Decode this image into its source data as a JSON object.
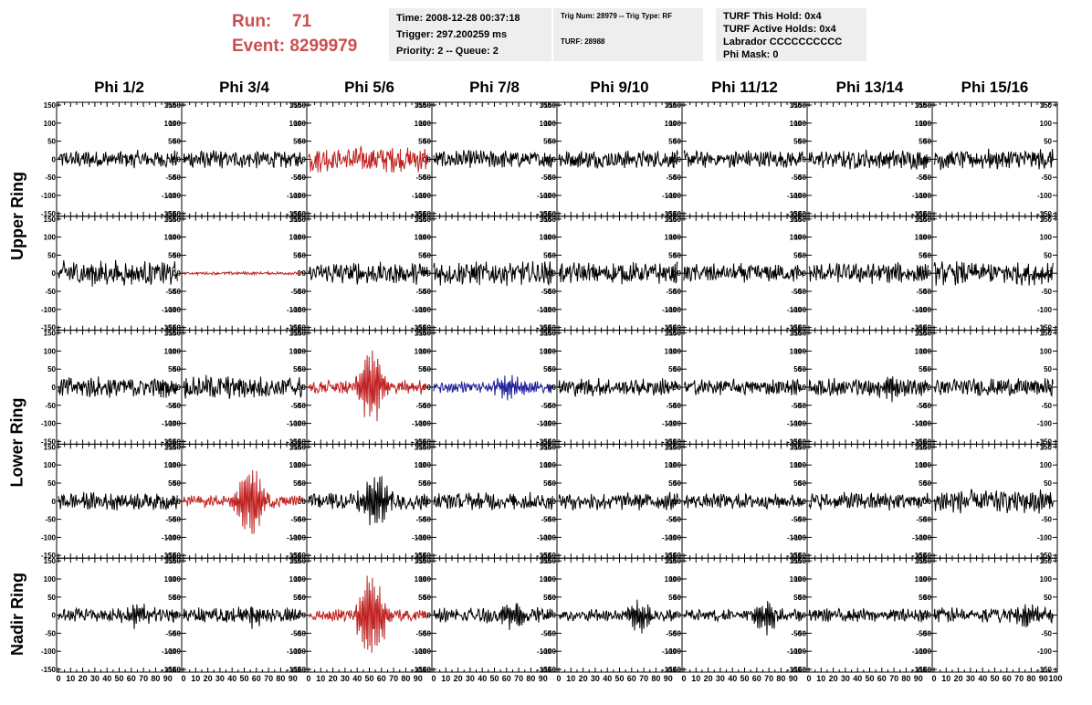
{
  "run": {
    "run_label": "Run:",
    "run_value": "71",
    "event_label": "Event:",
    "event_value": "8299979"
  },
  "info": {
    "time": "Time: 2008-12-28 00:37:18",
    "trigger": "Trigger: 297.200259 ms",
    "priority": "Priority: 2 -- Queue: 2",
    "trig_num": "Trig Num: 28979 -- Trig Type: RF",
    "turf": "TURF: 28988",
    "turf_hold": "TURF This Hold: 0x4",
    "turf_active": "TURF Active Holds: 0x4",
    "labrador": "Labrador CCCCCCCCCC",
    "phi_mask": "Phi Mask: 0"
  },
  "colors": {
    "header_red": "#cc4e4e",
    "trace_black": "#000000",
    "trace_red": "#c02020",
    "trace_blue": "#1a1a9a",
    "box_bg": "#eeeeee"
  },
  "chart_data": {
    "type": "line",
    "columns": [
      "Phi 1/2",
      "Phi 3/4",
      "Phi 5/6",
      "Phi 7/8",
      "Phi 9/10",
      "Phi 11/12",
      "Phi 13/14",
      "Phi 15/16"
    ],
    "row_groups": [
      {
        "label": "Upper Ring",
        "rows": [
          0,
          1
        ]
      },
      {
        "label": "Lower Ring",
        "rows": [
          2,
          3
        ]
      },
      {
        "label": "Nadir Ring",
        "rows": [
          4
        ]
      }
    ],
    "xlim": [
      0,
      100
    ],
    "x_tick_labels": [
      "0",
      "10",
      "20",
      "30",
      "40",
      "50",
      "60",
      "70",
      "80",
      "90",
      "100"
    ],
    "ylim": [
      -150,
      150
    ],
    "y_tick_labels": [
      "150",
      "100",
      "50",
      "0",
      "-50",
      "-100",
      "-150"
    ],
    "x_signal_range": [
      0,
      98
    ],
    "grid": false,
    "panels": [
      [
        {
          "amp": 12,
          "burst": 0,
          "center": 60,
          "color": "black"
        },
        {
          "amp": 12,
          "burst": 0,
          "center": 60,
          "color": "black"
        },
        {
          "amp": 18,
          "burst": 0,
          "center": 60,
          "color": "red"
        },
        {
          "amp": 12,
          "burst": 0,
          "center": 60,
          "color": "black"
        },
        {
          "amp": 12,
          "burst": 0,
          "center": 60,
          "color": "black"
        },
        {
          "amp": 12,
          "burst": 0,
          "center": 60,
          "color": "black"
        },
        {
          "amp": 13,
          "burst": 0,
          "center": 60,
          "color": "black"
        },
        {
          "amp": 14,
          "burst": 0,
          "center": 60,
          "color": "black"
        }
      ],
      [
        {
          "amp": 17,
          "burst": 0,
          "center": 60,
          "color": "black"
        },
        {
          "amp": 2,
          "burst": 0,
          "center": 60,
          "color": "red"
        },
        {
          "amp": 15,
          "burst": 0,
          "center": 60,
          "color": "black"
        },
        {
          "amp": 16,
          "burst": 0,
          "center": 60,
          "color": "black"
        },
        {
          "amp": 15,
          "burst": 0,
          "center": 60,
          "color": "black"
        },
        {
          "amp": 13,
          "burst": 0,
          "center": 60,
          "color": "black"
        },
        {
          "amp": 14,
          "burst": 0,
          "center": 60,
          "color": "black"
        },
        {
          "amp": 16,
          "burst": 0,
          "center": 60,
          "color": "black"
        }
      ],
      [
        {
          "amp": 14,
          "burst": 0,
          "center": 60,
          "color": "black"
        },
        {
          "amp": 16,
          "burst": 0,
          "center": 60,
          "color": "black"
        },
        {
          "amp": 10,
          "burst": 115,
          "center": 52,
          "color": "red"
        },
        {
          "amp": 8,
          "burst": 42,
          "center": 60,
          "color": "blue"
        },
        {
          "amp": 12,
          "burst": 0,
          "center": 60,
          "color": "black"
        },
        {
          "amp": 11,
          "burst": 0,
          "center": 60,
          "color": "black"
        },
        {
          "amp": 12,
          "burst": 22,
          "center": 70,
          "color": "black"
        },
        {
          "amp": 12,
          "burst": 0,
          "center": 60,
          "color": "black"
        }
      ],
      [
        {
          "amp": 12,
          "burst": 0,
          "center": 60,
          "color": "black"
        },
        {
          "amp": 8,
          "burst": 110,
          "center": 55,
          "color": "red"
        },
        {
          "amp": 12,
          "burst": 85,
          "center": 55,
          "color": "black"
        },
        {
          "amp": 12,
          "burst": 0,
          "center": 60,
          "color": "black"
        },
        {
          "amp": 12,
          "burst": 0,
          "center": 60,
          "color": "black"
        },
        {
          "amp": 10,
          "burst": 0,
          "center": 60,
          "color": "black"
        },
        {
          "amp": 12,
          "burst": 0,
          "center": 60,
          "color": "black"
        },
        {
          "amp": 16,
          "burst": 0,
          "center": 60,
          "color": "black"
        }
      ],
      [
        {
          "amp": 9,
          "burst": 28,
          "center": 65,
          "color": "black"
        },
        {
          "amp": 10,
          "burst": 30,
          "center": 55,
          "color": "black"
        },
        {
          "amp": 8,
          "burst": 130,
          "center": 52,
          "color": "red"
        },
        {
          "amp": 10,
          "burst": 38,
          "center": 68,
          "color": "black"
        },
        {
          "amp": 8,
          "burst": 45,
          "center": 66,
          "color": "black"
        },
        {
          "amp": 8,
          "burst": 48,
          "center": 68,
          "color": "black"
        },
        {
          "amp": 9,
          "burst": 0,
          "center": 60,
          "color": "black"
        },
        {
          "amp": 10,
          "burst": 32,
          "center": 80,
          "color": "black"
        }
      ]
    ]
  }
}
